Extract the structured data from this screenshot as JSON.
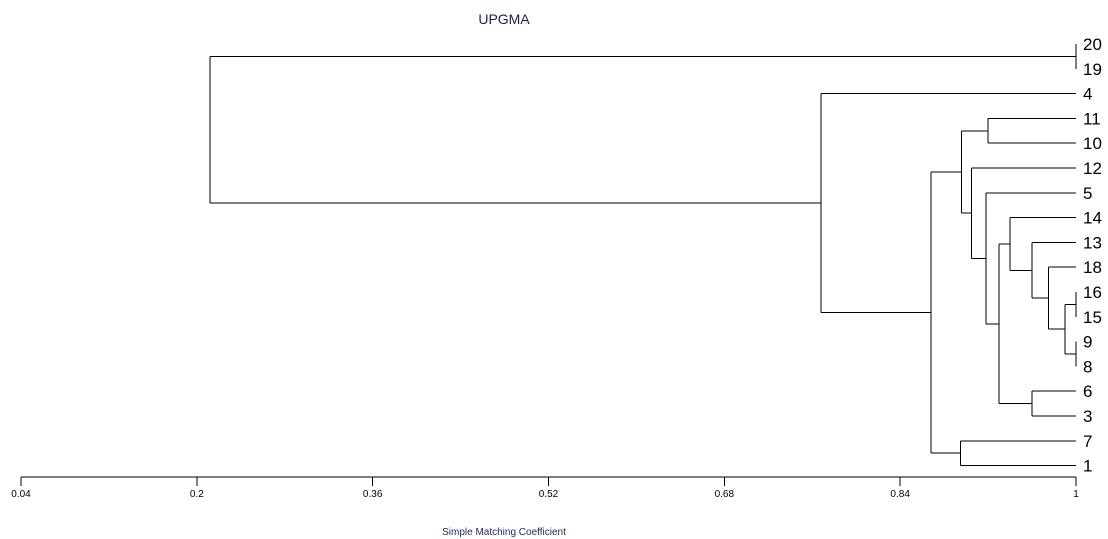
{
  "chart_data": {
    "type": "dendrogram",
    "title": "UPGMA",
    "xlabel": "Simple Matching Coefficient",
    "xlim": [
      0.04,
      1
    ],
    "xticks": [
      "0.04",
      "0.2",
      "0.36",
      "0.52",
      "0.68",
      "0.84",
      "1"
    ],
    "leaves": [
      "20",
      "19",
      "4",
      "11",
      "10",
      "12",
      "5",
      "14",
      "13",
      "18",
      "16",
      "15",
      "9",
      "8",
      "6",
      "3",
      "7",
      "1"
    ],
    "merges": [
      {
        "id": "m1",
        "left": "20",
        "right": "19",
        "similarity": 1.0
      },
      {
        "id": "m2",
        "left": "16",
        "right": "15",
        "similarity": 1.0
      },
      {
        "id": "m3",
        "left": "9",
        "right": "8",
        "similarity": 1.0
      },
      {
        "id": "m4",
        "left": "m2",
        "right": "m3",
        "similarity": 0.99
      },
      {
        "id": "m5",
        "left": "18",
        "right": "m4",
        "similarity": 0.975
      },
      {
        "id": "m6",
        "left": "13",
        "right": "m5",
        "similarity": 0.96
      },
      {
        "id": "m7",
        "left": "6",
        "right": "3",
        "similarity": 0.96
      },
      {
        "id": "m8",
        "left": "11",
        "right": "10",
        "similarity": 0.92
      },
      {
        "id": "m9",
        "left": "14",
        "right": "m6",
        "similarity": 0.94
      },
      {
        "id": "m10",
        "left": "m9",
        "right": "m7",
        "similarity": 0.93
      },
      {
        "id": "m11",
        "left": "5",
        "right": "m10",
        "similarity": 0.918
      },
      {
        "id": "m12",
        "left": "12",
        "right": "m11",
        "similarity": 0.905
      },
      {
        "id": "m13",
        "left": "m8",
        "right": "m12",
        "similarity": 0.896
      },
      {
        "id": "m14",
        "left": "7",
        "right": "1",
        "similarity": 0.895
      },
      {
        "id": "m15",
        "left": "m13",
        "right": "m14",
        "similarity": 0.868
      },
      {
        "id": "m16",
        "left": "4",
        "right": "m15",
        "similarity": 0.768
      },
      {
        "id": "m17",
        "left": "m1",
        "right": "m16",
        "similarity": 0.212
      }
    ]
  }
}
